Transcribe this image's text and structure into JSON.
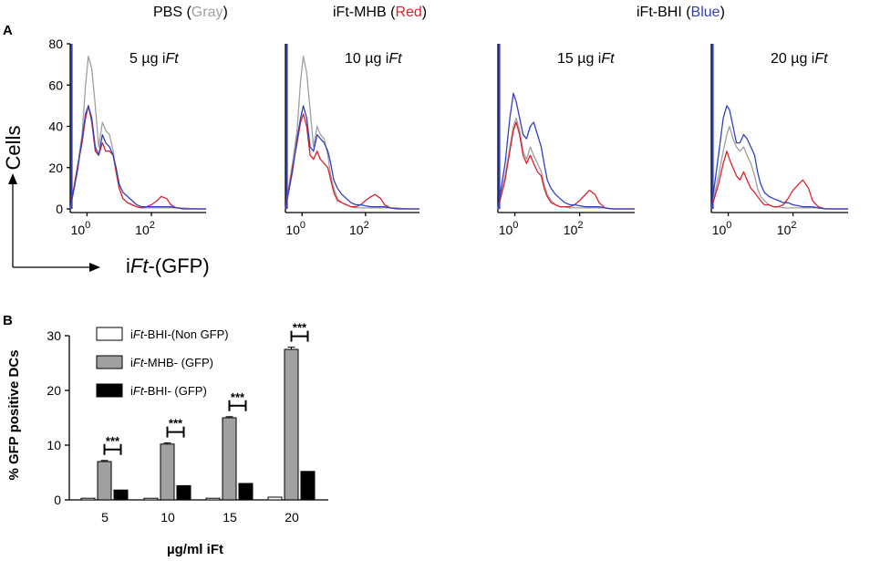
{
  "figure": {
    "panel_a_label": "A",
    "panel_b_label": "B"
  },
  "legend_header": {
    "pbs": {
      "name": "PBS (",
      "color_word": "Gray",
      "close": ")",
      "color": "#a0a0a0"
    },
    "mhb": {
      "name": "iFt-MHB (",
      "color_word": "Red",
      "close": ")",
      "color": "#d9232d"
    },
    "bhi": {
      "name": "iFt-BHI (",
      "color_word": "Blue",
      "close": ")",
      "color": "#3340c0"
    }
  },
  "axis_labels_a": {
    "y": "Cells",
    "x_prefix": "i",
    "x_italic": "Ft",
    "x_suffix": "-(GFP)"
  },
  "chart_data": [
    {
      "type": "histogram-line",
      "title": "5 µg iFt",
      "title_plain": "5 µg i",
      "title_italic": "Ft",
      "xscale": "log",
      "xlim": [
        0.3,
        5000
      ],
      "ylim": [
        0,
        80
      ],
      "yticks": [
        "0",
        "20",
        "40",
        "60",
        "80"
      ],
      "xticks": [
        "10",
        "10"
      ],
      "xtick_exponents": [
        "0",
        "2"
      ],
      "xtick_values": [
        1,
        100
      ],
      "series": [
        {
          "name": "PBS",
          "color": "#a0a0a0",
          "x": [
            0.3,
            0.5,
            0.7,
            0.9,
            1.1,
            1.4,
            1.8,
            2.3,
            3,
            3.8,
            5,
            6.5,
            8,
            10,
            13,
            18,
            25,
            35,
            50,
            70,
            100,
            150,
            200,
            300,
            400,
            600,
            1000,
            2000,
            5000
          ],
          "y": [
            0,
            20,
            36,
            60,
            74,
            68,
            50,
            30,
            42,
            38,
            36,
            28,
            18,
            10,
            5,
            3,
            2,
            1,
            0.5,
            0.5,
            0.5,
            0.5,
            0.5,
            0.5,
            0.5,
            0.5,
            0.5,
            0,
            0
          ]
        },
        {
          "name": "iFt-MHB",
          "color": "#d9232d",
          "x": [
            0.3,
            0.5,
            0.7,
            0.9,
            1.1,
            1.4,
            1.8,
            2.3,
            3,
            3.8,
            5,
            6.5,
            8,
            10,
            13,
            18,
            25,
            35,
            50,
            70,
            100,
            150,
            200,
            300,
            400,
            600,
            1000,
            2000,
            5000
          ],
          "y": [
            0,
            20,
            32,
            44,
            50,
            42,
            28,
            26,
            32,
            28,
            28,
            26,
            18,
            10,
            5,
            3,
            2,
            1,
            0.5,
            1,
            2,
            4,
            6,
            5,
            2,
            0.5,
            0,
            0,
            0
          ]
        },
        {
          "name": "iFt-BHI",
          "color": "#3340c0",
          "x": [
            0.3,
            0.5,
            0.7,
            0.9,
            1.1,
            1.4,
            1.8,
            2.3,
            3,
            3.8,
            5,
            6.5,
            8,
            10,
            13,
            18,
            25,
            35,
            50,
            70,
            100,
            150,
            200,
            300,
            400,
            600,
            1000,
            2000,
            5000
          ],
          "y": [
            0,
            18,
            34,
            46,
            50,
            44,
            30,
            26,
            36,
            32,
            30,
            26,
            20,
            12,
            8,
            6,
            4,
            2,
            1,
            1,
            1,
            1,
            1,
            1,
            1,
            0.5,
            0,
            0,
            0
          ]
        }
      ]
    },
    {
      "type": "histogram-line",
      "title": "10 µg iFt",
      "title_plain": "10 µg i",
      "title_italic": "Ft",
      "xscale": "log",
      "xlim": [
        0.3,
        5000
      ],
      "ylim": [
        0,
        80
      ],
      "yticks": [],
      "xticks": [
        "10",
        "10"
      ],
      "xtick_exponents": [
        "0",
        "2"
      ],
      "xtick_values": [
        1,
        100
      ],
      "series": [
        {
          "name": "PBS",
          "color": "#a0a0a0",
          "x": [
            0.3,
            0.5,
            0.7,
            0.9,
            1.1,
            1.4,
            1.8,
            2.3,
            3,
            3.8,
            5,
            6.5,
            8,
            10,
            13,
            18,
            25,
            35,
            50,
            70,
            100,
            150,
            200,
            300,
            400,
            600,
            1000,
            2000,
            5000
          ],
          "y": [
            0,
            22,
            38,
            62,
            74,
            66,
            48,
            30,
            40,
            36,
            34,
            26,
            16,
            10,
            5,
            3,
            2,
            1,
            0.5,
            0.5,
            0.5,
            0.5,
            0.5,
            0.5,
            0.5,
            0.5,
            0.5,
            0,
            0
          ]
        },
        {
          "name": "iFt-MHB",
          "color": "#d9232d",
          "x": [
            0.3,
            0.5,
            0.7,
            0.9,
            1.1,
            1.4,
            1.8,
            2.3,
            3,
            3.8,
            5,
            6.5,
            8,
            10,
            13,
            18,
            25,
            35,
            50,
            70,
            100,
            150,
            200,
            300,
            400,
            600,
            1000,
            2000,
            5000
          ],
          "y": [
            0,
            20,
            32,
            42,
            46,
            40,
            26,
            24,
            28,
            24,
            22,
            20,
            14,
            8,
            4,
            3,
            2,
            1,
            1,
            2,
            4,
            6,
            7,
            5,
            2,
            0.5,
            0,
            0,
            0
          ]
        },
        {
          "name": "iFt-BHI",
          "color": "#3340c0",
          "x": [
            0.3,
            0.5,
            0.7,
            0.9,
            1.1,
            1.4,
            1.8,
            2.3,
            3,
            3.8,
            5,
            6.5,
            8,
            10,
            13,
            18,
            25,
            35,
            50,
            70,
            100,
            150,
            200,
            300,
            400,
            600,
            1000,
            2000,
            5000
          ],
          "y": [
            0,
            18,
            34,
            44,
            50,
            44,
            30,
            28,
            36,
            34,
            32,
            28,
            22,
            14,
            10,
            7,
            5,
            3,
            2,
            2,
            1.5,
            1,
            1,
            1,
            1,
            0.5,
            0,
            0,
            0
          ]
        }
      ]
    },
    {
      "type": "histogram-line",
      "title": "15 µg iFt",
      "title_plain": "15 µg i",
      "title_italic": "Ft",
      "xscale": "log",
      "xlim": [
        0.3,
        5000
      ],
      "ylim": [
        0,
        80
      ],
      "yticks": [],
      "xticks": [
        "10",
        "10"
      ],
      "xtick_exponents": [
        "0",
        "2"
      ],
      "xtick_values": [
        1,
        100
      ],
      "series": [
        {
          "name": "PBS",
          "color": "#a0a0a0",
          "x": [
            0.3,
            0.5,
            0.7,
            0.9,
            1.1,
            1.4,
            1.8,
            2.3,
            3,
            3.8,
            5,
            6.5,
            8,
            10,
            13,
            18,
            25,
            35,
            50,
            70,
            100,
            150,
            200,
            300,
            400,
            600,
            1000,
            2000,
            5000
          ],
          "y": [
            0,
            16,
            30,
            40,
            44,
            38,
            28,
            24,
            30,
            26,
            22,
            18,
            12,
            7,
            4,
            2,
            1,
            1,
            0.5,
            0.5,
            0.5,
            0.5,
            0.5,
            0.5,
            0.5,
            0.5,
            0,
            0,
            0
          ]
        },
        {
          "name": "iFt-MHB",
          "color": "#d9232d",
          "x": [
            0.3,
            0.5,
            0.7,
            0.9,
            1.1,
            1.4,
            1.8,
            2.3,
            3,
            3.8,
            5,
            6.5,
            8,
            10,
            13,
            18,
            25,
            35,
            50,
            70,
            100,
            150,
            200,
            300,
            400,
            600,
            1000,
            2000,
            5000
          ],
          "y": [
            0,
            14,
            28,
            38,
            42,
            36,
            26,
            22,
            26,
            22,
            18,
            16,
            10,
            6,
            3,
            2,
            1,
            1,
            1,
            2,
            4,
            7,
            9,
            7,
            3,
            0.5,
            0,
            0,
            0
          ]
        },
        {
          "name": "iFt-BHI",
          "color": "#3340c0",
          "x": [
            0.3,
            0.5,
            0.7,
            0.9,
            1.1,
            1.4,
            1.8,
            2.3,
            3,
            3.8,
            5,
            6.5,
            8,
            10,
            13,
            18,
            25,
            35,
            50,
            70,
            100,
            150,
            200,
            300,
            400,
            600,
            1000,
            2000,
            5000
          ],
          "y": [
            0,
            22,
            44,
            56,
            52,
            44,
            36,
            34,
            40,
            42,
            36,
            30,
            22,
            14,
            10,
            7,
            5,
            3,
            2,
            2,
            1.5,
            1,
            1,
            1,
            1,
            0.5,
            0,
            0,
            0
          ]
        }
      ]
    },
    {
      "type": "histogram-line",
      "title": "20 µg iFt",
      "title_plain": "20 µg i",
      "title_italic": "Ft",
      "xscale": "log",
      "xlim": [
        0.3,
        5000
      ],
      "ylim": [
        0,
        80
      ],
      "yticks": [],
      "xticks": [
        "10",
        "10"
      ],
      "xtick_exponents": [
        "0",
        "2"
      ],
      "xtick_values": [
        1,
        100
      ],
      "series": [
        {
          "name": "PBS",
          "color": "#a0a0a0",
          "x": [
            0.3,
            0.5,
            0.7,
            0.9,
            1.1,
            1.4,
            1.8,
            2.3,
            3,
            3.8,
            5,
            6.5,
            8,
            10,
            13,
            18,
            25,
            35,
            50,
            70,
            100,
            150,
            200,
            300,
            400,
            600,
            1000,
            2000,
            5000
          ],
          "y": [
            0,
            16,
            28,
            36,
            40,
            34,
            30,
            28,
            30,
            26,
            22,
            16,
            10,
            6,
            4,
            2,
            1,
            1,
            0.5,
            0.5,
            0.5,
            0.5,
            0.5,
            0.5,
            0.5,
            0.5,
            0,
            0,
            0
          ]
        },
        {
          "name": "iFt-MHB",
          "color": "#d9232d",
          "x": [
            0.3,
            0.5,
            0.7,
            0.9,
            1.1,
            1.4,
            1.8,
            2.3,
            3,
            3.8,
            5,
            6.5,
            8,
            10,
            13,
            18,
            25,
            35,
            50,
            70,
            100,
            150,
            200,
            300,
            400,
            600,
            1000,
            2000,
            5000
          ],
          "y": [
            0,
            12,
            22,
            28,
            24,
            20,
            16,
            14,
            18,
            14,
            10,
            8,
            6,
            4,
            2,
            2,
            1,
            1,
            2,
            5,
            9,
            12,
            14,
            10,
            4,
            1,
            0,
            0,
            0
          ]
        },
        {
          "name": "iFt-BHI",
          "color": "#3340c0",
          "x": [
            0.3,
            0.5,
            0.7,
            0.9,
            1.1,
            1.4,
            1.8,
            2.3,
            3,
            3.8,
            5,
            6.5,
            8,
            10,
            13,
            18,
            25,
            35,
            50,
            70,
            100,
            150,
            200,
            300,
            400,
            600,
            1000,
            2000,
            5000
          ],
          "y": [
            0,
            26,
            44,
            50,
            48,
            40,
            32,
            32,
            36,
            34,
            30,
            26,
            18,
            12,
            8,
            6,
            5,
            4,
            3,
            3,
            2,
            1.5,
            1,
            1,
            1,
            0.5,
            0,
            0,
            0
          ]
        }
      ]
    },
    {
      "type": "bar",
      "title": "",
      "xlabel": "µg/ml iFt",
      "ylabel": "% GFP positive DCs",
      "ylim": [
        0,
        30
      ],
      "yticks": [
        "0",
        "10",
        "20",
        "30"
      ],
      "categories": [
        "5",
        "10",
        "15",
        "20"
      ],
      "series": [
        {
          "name": "iFt-BHI-(Non GFP)",
          "legend_plain": "i",
          "legend_italic": "Ft",
          "legend_suffix": "-BHI-(Non GFP)",
          "fill": "#ffffff",
          "values": [
            0.3,
            0.3,
            0.3,
            0.5
          ]
        },
        {
          "name": "iFt-MHB- (GFP)",
          "legend_plain": "i",
          "legend_italic": "Ft",
          "legend_suffix": "-MHB- (GFP)",
          "fill": "#a0a0a0",
          "values": [
            7.0,
            10.2,
            15.0,
            27.5
          ],
          "errors": [
            0.2,
            0.2,
            0.2,
            0.4
          ]
        },
        {
          "name": "iFt-BHI- (GFP)",
          "legend_plain": "i",
          "legend_italic": "Ft",
          "legend_suffix": "-BHI- (GFP)",
          "fill": "#000000",
          "values": [
            1.8,
            2.6,
            3.0,
            5.2
          ]
        }
      ],
      "significance": "***"
    }
  ]
}
